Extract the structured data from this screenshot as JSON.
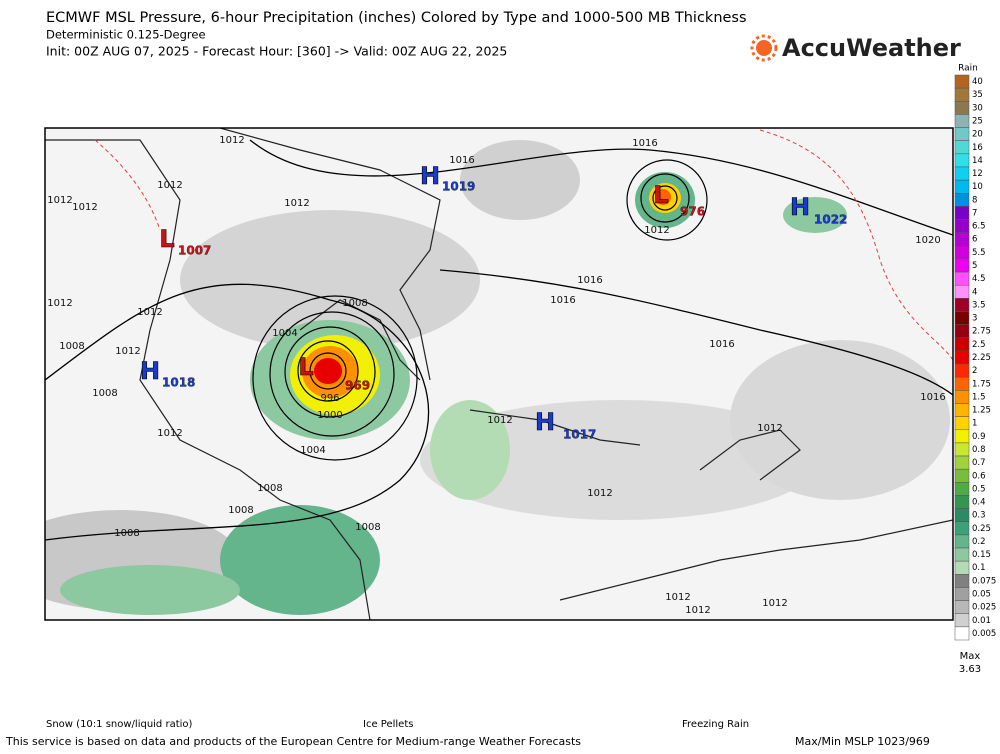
{
  "header": {
    "title": "ECMWF MSL Pressure, 6-hour Precipitation (inches) Colored by Type and 1000-500 MB Thickness",
    "subtitle": "Deterministic 0.125-Degree",
    "init_line": "Init: 00Z AUG 07, 2025 - Forecast Hour: [360] -> Valid: 00Z AUG 22, 2025",
    "brand": "AccuWeather"
  },
  "colorbar": {
    "label": "Rain",
    "levels": [
      40,
      35,
      30,
      25,
      20,
      16,
      14,
      12,
      10,
      8,
      7,
      6.5,
      6,
      5.5,
      5,
      4.5,
      4,
      3.5,
      3,
      2.75,
      2.5,
      2.25,
      2,
      1.75,
      1.5,
      1.25,
      1,
      0.9,
      0.8,
      0.7,
      0.6,
      0.5,
      0.4,
      0.3,
      0.25,
      0.2,
      0.15,
      0.1,
      0.075,
      0.05,
      0.025,
      0.01,
      0.005
    ],
    "colors": [
      "#b4641e",
      "#a0783c",
      "#8c7850",
      "#8cb4b4",
      "#70c8c8",
      "#50d8d8",
      "#30e0e8",
      "#10d0f0",
      "#00b8f0",
      "#0090e0",
      "#7800c8",
      "#9600c8",
      "#b400d2",
      "#d200dc",
      "#f000f0",
      "#ff50ff",
      "#ff90ff",
      "#a00028",
      "#780000",
      "#960014",
      "#c80000",
      "#e60000",
      "#ff2800",
      "#ff6400",
      "#ff9000",
      "#ffb400",
      "#ffd200",
      "#f0f000",
      "#c8e632",
      "#a0d23c",
      "#78be3c",
      "#50aa46",
      "#329650",
      "#2a8c64",
      "#3ca078",
      "#64b48c",
      "#8cc8a0",
      "#b4dcb4",
      "#808080",
      "#a0a0a0",
      "#b8b8b8",
      "#d0d0d0",
      "#ffffff"
    ],
    "max_label": "Max",
    "max_value": "3.63"
  },
  "map": {
    "centers": [
      {
        "letter": "H",
        "value": "1019"
      },
      {
        "letter": "L",
        "value": "1007"
      },
      {
        "letter": "H",
        "value": "1018"
      },
      {
        "letter": "L",
        "value": "969"
      },
      {
        "letter": "L",
        "value": "976"
      },
      {
        "letter": "H",
        "value": "1022"
      },
      {
        "letter": "H",
        "value": "1017"
      }
    ],
    "isobar_labels": [
      "1012",
      "1012",
      "1012",
      "1012",
      "1012",
      "1012",
      "1012",
      "1012",
      "1008",
      "1008",
      "1012",
      "1016",
      "1016",
      "1012",
      "1020",
      "1016",
      "1016",
      "1008",
      "1004",
      "1000",
      "996",
      "1004",
      "1008",
      "1008",
      "1008",
      "1008",
      "1012",
      "1016",
      "1016",
      "1012",
      "1012",
      "1012",
      "1012",
      "1012"
    ]
  },
  "legend": {
    "snow": "Snow (10:1 snow/liquid ratio)",
    "ice": "Ice Pellets",
    "freezing": "Freezing Rain"
  },
  "footer": {
    "credit": "This service is based on data and products of the European Centre for Medium-range Weather Forecasts",
    "maxmin": "Max/Min MSLP 1023/969"
  }
}
